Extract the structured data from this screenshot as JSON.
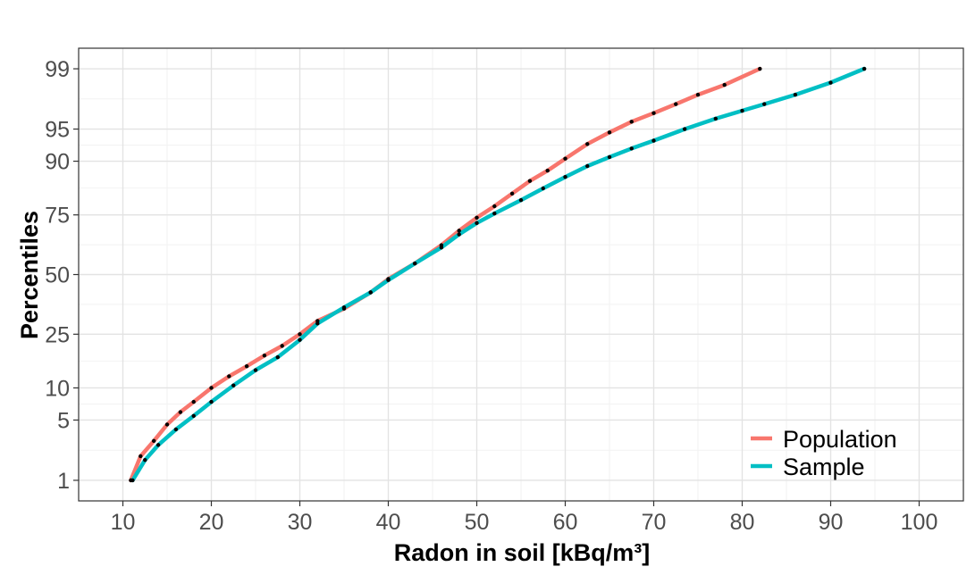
{
  "chart_data": {
    "type": "line",
    "xlabel": "Radon in soil [kBq/m³]",
    "ylabel": "Percentiles",
    "xlim": [
      5,
      105
    ],
    "xticks": [
      10,
      20,
      30,
      40,
      50,
      60,
      70,
      80,
      90,
      100
    ],
    "y_scale": "probit",
    "yticks": [
      1,
      5,
      10,
      25,
      50,
      75,
      90,
      95,
      99
    ],
    "grid": true,
    "legend_position": "bottom-right",
    "series": [
      {
        "name": "Population",
        "color": "#F8766D",
        "points": [
          [
            10.9,
            1
          ],
          [
            12.0,
            2
          ],
          [
            13.5,
            3
          ],
          [
            15.0,
            4.5
          ],
          [
            16.5,
            6
          ],
          [
            18.0,
            7.5
          ],
          [
            20.0,
            10
          ],
          [
            22.0,
            12.5
          ],
          [
            24.0,
            15
          ],
          [
            26.0,
            18
          ],
          [
            28.0,
            21
          ],
          [
            30.0,
            25
          ],
          [
            32.0,
            30
          ],
          [
            35.0,
            35
          ],
          [
            38.0,
            42
          ],
          [
            40.0,
            48
          ],
          [
            43.0,
            55
          ],
          [
            46.0,
            63
          ],
          [
            48.0,
            69
          ],
          [
            50.0,
            74
          ],
          [
            52.0,
            78
          ],
          [
            54.0,
            82
          ],
          [
            56.0,
            85.5
          ],
          [
            58.0,
            88
          ],
          [
            60.0,
            90.5
          ],
          [
            62.5,
            93
          ],
          [
            65.0,
            94.6
          ],
          [
            67.5,
            95.8
          ],
          [
            70.0,
            96.6
          ],
          [
            72.5,
            97.3
          ],
          [
            75.0,
            97.9
          ],
          [
            78.0,
            98.4
          ],
          [
            82.0,
            99
          ]
        ]
      },
      {
        "name": "Sample",
        "color": "#00BFC4",
        "points": [
          [
            11.1,
            1
          ],
          [
            12.5,
            1.8
          ],
          [
            14.0,
            2.7
          ],
          [
            16.0,
            4
          ],
          [
            18.0,
            5.5
          ],
          [
            20.0,
            7.5
          ],
          [
            22.5,
            10.5
          ],
          [
            25.0,
            14
          ],
          [
            27.5,
            17.5
          ],
          [
            30.0,
            23
          ],
          [
            32.0,
            29
          ],
          [
            35.0,
            35.5
          ],
          [
            38.0,
            42
          ],
          [
            40.0,
            47.5
          ],
          [
            43.0,
            55
          ],
          [
            46.0,
            62
          ],
          [
            48.0,
            67.5
          ],
          [
            50.0,
            72
          ],
          [
            52.0,
            75.5
          ],
          [
            55.0,
            80
          ],
          [
            57.5,
            83.5
          ],
          [
            60.0,
            86.5
          ],
          [
            62.5,
            89
          ],
          [
            65.0,
            90.8
          ],
          [
            67.5,
            92.3
          ],
          [
            70.0,
            93.5
          ],
          [
            73.5,
            95
          ],
          [
            77.0,
            96.1
          ],
          [
            80.0,
            96.8
          ],
          [
            82.5,
            97.3
          ],
          [
            86.0,
            97.9
          ],
          [
            90.0,
            98.5
          ],
          [
            93.8,
            99
          ]
        ]
      }
    ]
  }
}
